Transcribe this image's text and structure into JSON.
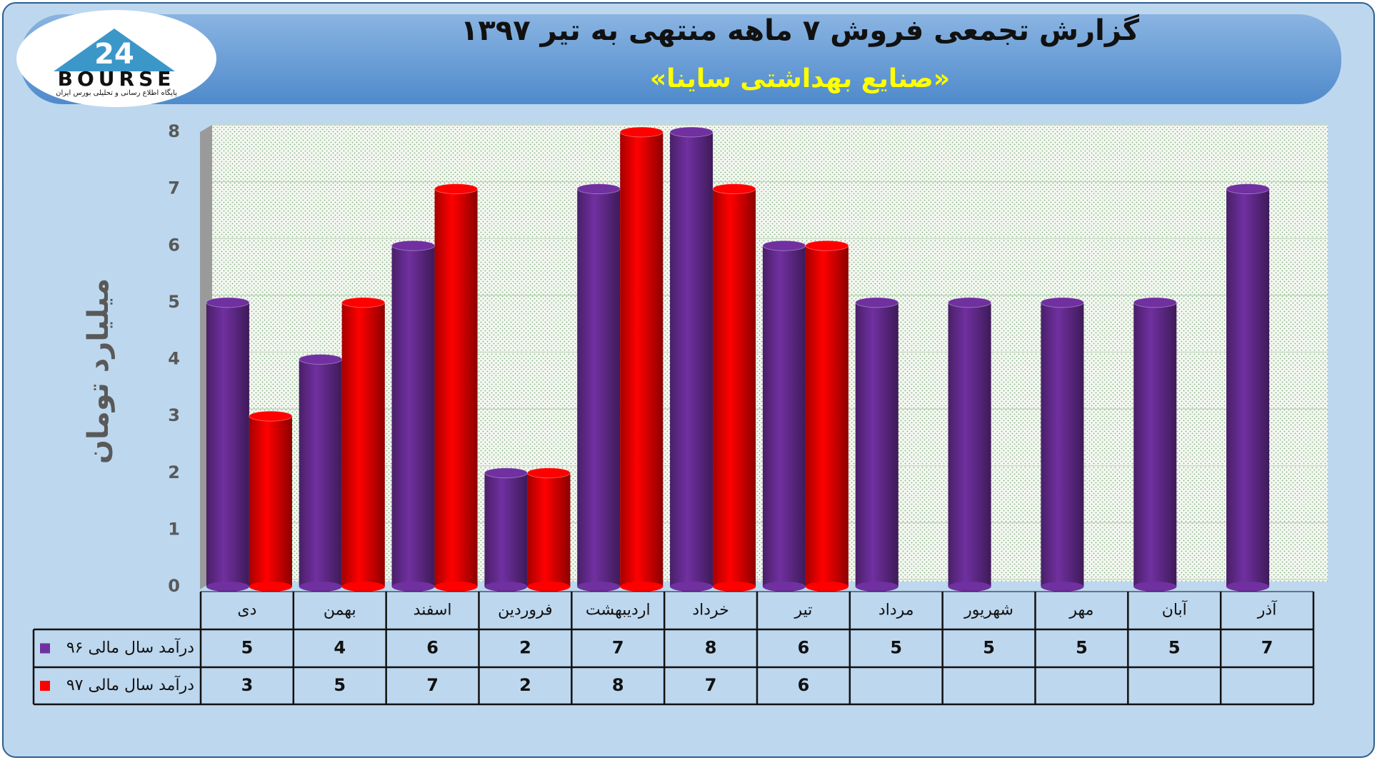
{
  "logo": {
    "number": "24",
    "text": "BOURSE",
    "tagline": "پایگاه اطلاع رسانی و تحلیلی بورس ایران"
  },
  "chart_data": {
    "type": "bar",
    "title": "گزارش تجمعی فروش ۷ ماهه منتهی به تیر ۱۳۹۷",
    "subtitle": "«صنایع بهداشتی ساینا»",
    "y_label": "میلیارد تومان",
    "categories": [
      "دی",
      "بهمن",
      "اسفند",
      "فروردین",
      "اردیبهشت",
      "خرداد",
      "تیر",
      "مرداد",
      "شهریور",
      "مهر",
      "آبان",
      "آذر"
    ],
    "series": [
      {
        "name": "درآمد سال مالی ۹۶",
        "color": "#7030a0",
        "values": [
          5,
          4,
          6,
          2,
          7,
          8,
          6,
          5,
          5,
          5,
          5,
          7
        ]
      },
      {
        "name": "درآمد سال مالی ۹۷",
        "color": "#ff0000",
        "values": [
          3,
          5,
          7,
          2,
          8,
          7,
          6,
          null,
          null,
          null,
          null,
          null
        ]
      }
    ],
    "ylim": [
      0,
      8
    ],
    "yticks": [
      0,
      1,
      2,
      3,
      4,
      5,
      6,
      7,
      8
    ],
    "grid": true
  }
}
